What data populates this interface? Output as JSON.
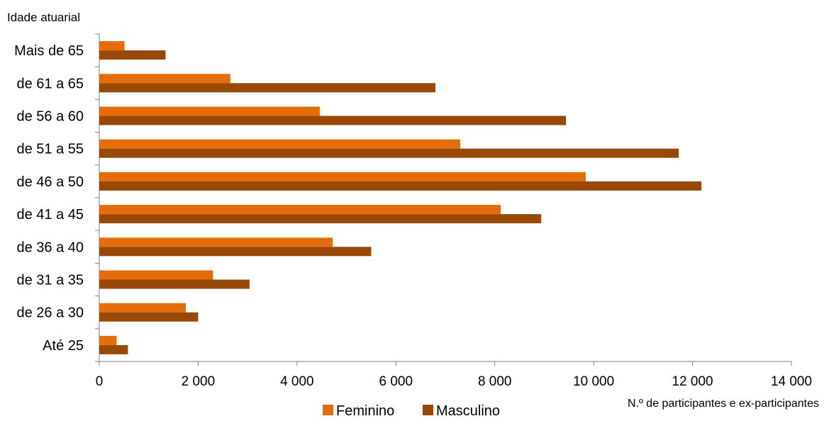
{
  "chart_data": {
    "type": "bar",
    "orientation": "horizontal",
    "title": "",
    "ylabel": "Idade atuarial",
    "xlabel": "N.º de participantes e ex-participantes",
    "categories": [
      "Até 25",
      "de 26 a 30",
      "de 31 a 35",
      "de 36 a 40",
      "de 41 a 45",
      "de 46 a 50",
      "de 51 a 55",
      "de 56 a 60",
      "de 61 a 65",
      "Mais de 65"
    ],
    "series": [
      {
        "name": "Feminino",
        "color": "#E46C0A",
        "values": [
          350,
          1750,
          2300,
          4720,
          8120,
          9840,
          7300,
          4460,
          2650,
          510
        ]
      },
      {
        "name": "Masculino",
        "color": "#984807",
        "values": [
          580,
          2000,
          3040,
          5500,
          8940,
          12180,
          11720,
          9440,
          6800,
          1340
        ]
      }
    ],
    "xlim": [
      0,
      14000
    ],
    "xticks": [
      "0",
      "2 000",
      "4 000",
      "6 000",
      "8 000",
      "10 000",
      "12 000",
      "14 000"
    ],
    "grid": false,
    "legend_position": "bottom"
  }
}
